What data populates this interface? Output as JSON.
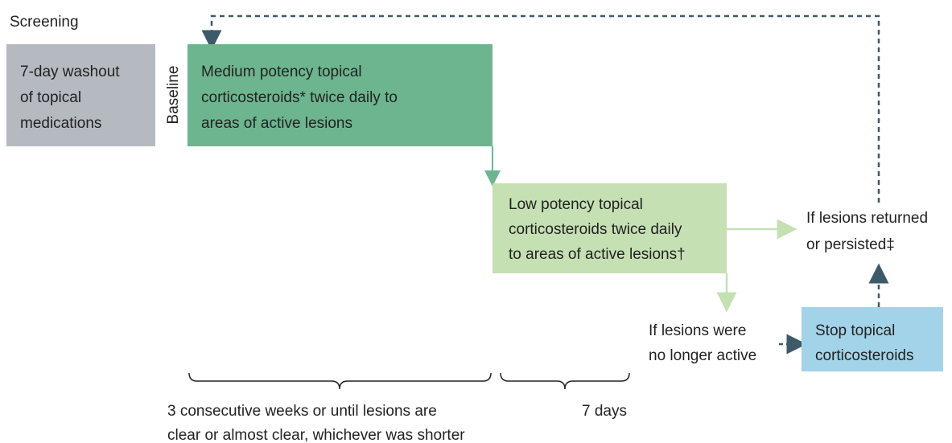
{
  "screening_label": "Screening",
  "baseline_label": "Baseline",
  "nodes": [
    {
      "lines": [
        "7-day washout",
        "of topical",
        "medications"
      ]
    },
    {
      "lines": [
        "Medium potency topical",
        "corticosteroids* twice daily to",
        "areas of active lesions"
      ]
    },
    {
      "lines": [
        "Low potency topical",
        "corticosteroids twice daily",
        "to areas of active lesions†"
      ]
    },
    {
      "lines": [
        "If lesions returned",
        "or persisted‡"
      ]
    },
    {
      "lines": [
        "If lesions were",
        "no longer active"
      ]
    },
    {
      "lines": [
        "Stop topical",
        "corticosteroids"
      ]
    }
  ],
  "durations": [
    {
      "lines": [
        "3 consecutive weeks or until lesions are",
        "clear or almost clear, whichever was shorter"
      ]
    },
    {
      "lines": [
        "7 days"
      ]
    }
  ]
}
